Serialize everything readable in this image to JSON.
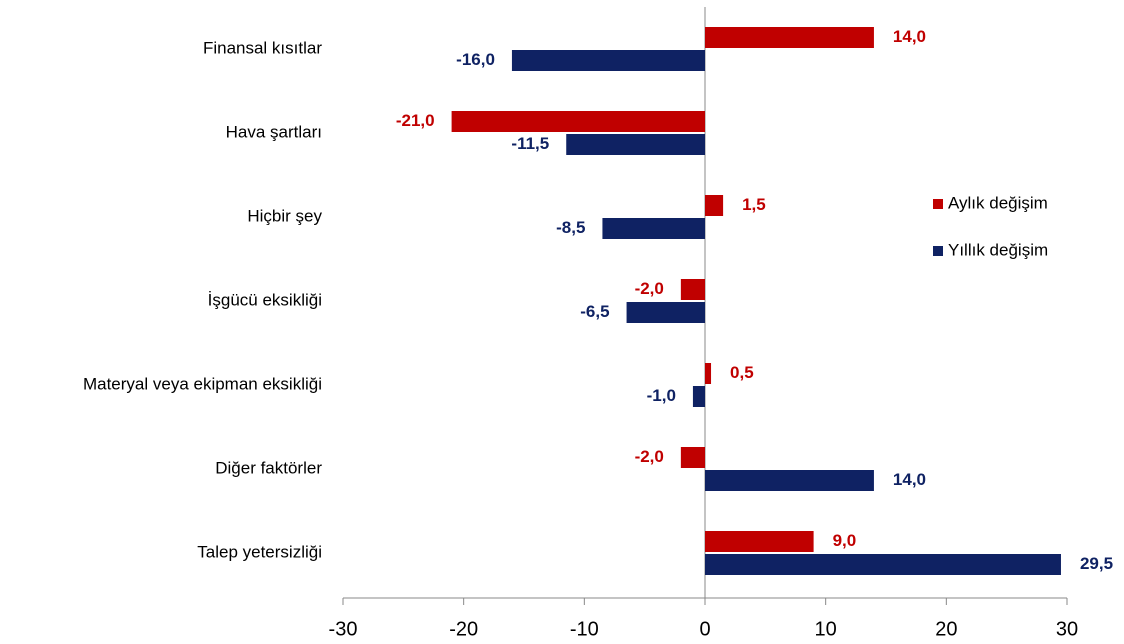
{
  "chart_data": {
    "type": "barh",
    "categories": [
      "Finansal kısıtlar",
      "Hava şartları",
      "Hiçbir şey",
      "İşgücü eksikliği",
      "Materyal veya ekipman eksikliği",
      "Diğer faktörler",
      "Talep yetersizliği"
    ],
    "series": [
      {
        "name": "Aylık değişim",
        "color": "#c00000",
        "values": [
          14.0,
          -21.0,
          1.5,
          -2.0,
          0.5,
          -2.0,
          9.0
        ],
        "value_labels": [
          "14,0",
          "-21,0",
          "1,5",
          "-2,0",
          "0,5",
          "-2,0",
          "9,0"
        ]
      },
      {
        "name": "Yıllık değişim",
        "color": "#0f2263",
        "values": [
          -16.0,
          -11.5,
          -8.5,
          -6.5,
          -1.0,
          14.0,
          29.5
        ],
        "value_labels": [
          "-16,0",
          "-11,5",
          "-8,5",
          "-6,5",
          "-1,0",
          "14,0",
          "29,5"
        ]
      }
    ],
    "xlim": [
      -30,
      30
    ],
    "xticks": [
      -30,
      -20,
      -10,
      0,
      10,
      20,
      30
    ],
    "grid": false,
    "legend": "right"
  }
}
